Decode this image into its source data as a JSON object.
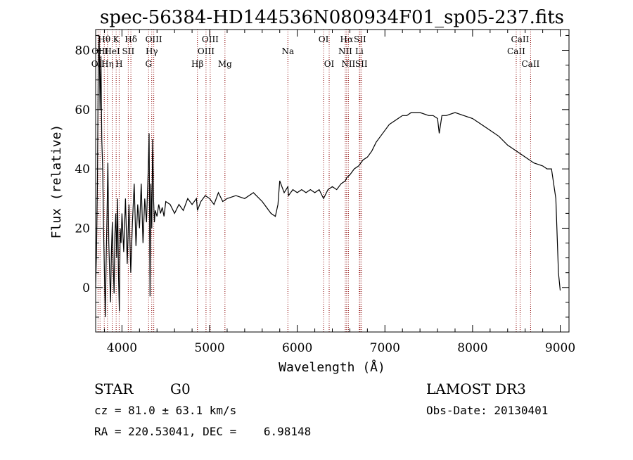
{
  "chart_data": {
    "type": "line",
    "title": "spec-56384-HD144536N080934F01_sp05-237.fits",
    "xlabel": "Wavelength (Å)",
    "ylabel": "Flux (relative)",
    "xlim": [
      3700,
      9100
    ],
    "ylim": [
      -15,
      87
    ],
    "xticks": [
      "4000",
      "5000",
      "6000",
      "7000",
      "8000",
      "9000"
    ],
    "xtick_values": [
      4000,
      5000,
      6000,
      7000,
      8000,
      9000
    ],
    "yticks": [
      "0",
      "20",
      "40",
      "60",
      "80"
    ],
    "ytick_values": [
      0,
      20,
      40,
      60,
      80
    ],
    "line_color": "#000000",
    "marker_color": "#8b0000",
    "series": [
      {
        "x": [
          3700,
          3710,
          3720,
          3730,
          3740,
          3750,
          3760,
          3770,
          3780,
          3790,
          3800,
          3810,
          3820,
          3830,
          3840,
          3850,
          3860,
          3870,
          3880,
          3890,
          3900,
          3910,
          3920,
          3930,
          3940,
          3950,
          3960,
          3970,
          3980,
          3990,
          4000,
          4020,
          4040,
          4060,
          4080,
          4100,
          4120,
          4140,
          4160,
          4180,
          4200,
          4220,
          4240,
          4260,
          4280,
          4300,
          4310,
          4320,
          4330,
          4340,
          4350,
          4360,
          4370,
          4380,
          4400,
          4420,
          4440,
          4460,
          4480,
          4500,
          4550,
          4600,
          4650,
          4700,
          4750,
          4800,
          4850,
          4861,
          4900,
          4950,
          5000,
          5050,
          5100,
          5150,
          5200,
          5300,
          5400,
          5500,
          5600,
          5700,
          5750,
          5780,
          5800,
          5850,
          5893,
          5900,
          5950,
          6000,
          6050,
          6100,
          6150,
          6200,
          6250,
          6300,
          6350,
          6400,
          6450,
          6500,
          6550,
          6563,
          6600,
          6650,
          6700,
          6750,
          6800,
          6850,
          6900,
          6950,
          7000,
          7050,
          7100,
          7150,
          7200,
          7250,
          7300,
          7400,
          7500,
          7550,
          7600,
          7620,
          7650,
          7700,
          7800,
          7900,
          8000,
          8100,
          8200,
          8300,
          8400,
          8500,
          8600,
          8700,
          8800,
          8850,
          8900,
          8950,
          8980,
          9000
        ],
        "y": [
          0,
          12,
          35,
          75,
          85,
          60,
          78,
          50,
          40,
          20,
          5,
          -10,
          10,
          25,
          42,
          15,
          5,
          -5,
          12,
          22,
          8,
          -2,
          18,
          25,
          10,
          30,
          5,
          -8,
          20,
          15,
          25,
          12,
          30,
          8,
          28,
          5,
          22,
          35,
          14,
          28,
          20,
          35,
          15,
          30,
          22,
          40,
          52,
          -3,
          35,
          20,
          50,
          30,
          22,
          26,
          24,
          28,
          25,
          27,
          24,
          29,
          28,
          25,
          28,
          26,
          30,
          28,
          30,
          26,
          29,
          31,
          30,
          28,
          32,
          29,
          30,
          31,
          30,
          32,
          29,
          25,
          24,
          28,
          36,
          32,
          34,
          31,
          33,
          32,
          33,
          32,
          33,
          32,
          33,
          30,
          33,
          34,
          33,
          35,
          36,
          37,
          38,
          40,
          41,
          43,
          44,
          46,
          49,
          51,
          53,
          55,
          56,
          57,
          58,
          58,
          59,
          59,
          58,
          58,
          57,
          52,
          58,
          58,
          59,
          58,
          57,
          55,
          53,
          51,
          48,
          46,
          44,
          42,
          41,
          40,
          40,
          30,
          5,
          -1
        ]
      }
    ],
    "line_markers": [
      {
        "label": "OII",
        "x": 3727,
        "row": 3
      },
      {
        "label": "Hθ",
        "x": 3798,
        "row": 1
      },
      {
        "label": "OIII",
        "x": 3750,
        "row": 2
      },
      {
        "label": "Hη",
        "x": 3835,
        "row": 3
      },
      {
        "label": "HeI",
        "x": 3889,
        "row": 2
      },
      {
        "label": "K",
        "x": 3934,
        "row": 1
      },
      {
        "label": "H",
        "x": 3968,
        "row": 3
      },
      {
        "label": "SII",
        "x": 4072,
        "row": 2
      },
      {
        "label": "Hδ",
        "x": 4102,
        "row": 1
      },
      {
        "label": "G",
        "x": 4304,
        "row": 3
      },
      {
        "label": "Hγ",
        "x": 4340,
        "row": 2
      },
      {
        "label": "OIII",
        "x": 4363,
        "row": 1
      },
      {
        "label": "Hβ",
        "x": 4861,
        "row": 3
      },
      {
        "label": "OIII",
        "x": 4959,
        "row": 2
      },
      {
        "label": "OIII",
        "x": 5007,
        "row": 1
      },
      {
        "label": "Mg",
        "x": 5175,
        "row": 3
      },
      {
        "label": "Na",
        "x": 5893,
        "row": 2
      },
      {
        "label": "OI",
        "x": 6300,
        "row": 1
      },
      {
        "label": "OI",
        "x": 6364,
        "row": 3
      },
      {
        "label": "NII",
        "x": 6548,
        "row": 2
      },
      {
        "label": "Hα",
        "x": 6563,
        "row": 1
      },
      {
        "label": "NII",
        "x": 6583,
        "row": 3
      },
      {
        "label": "Li",
        "x": 6708,
        "row": 2
      },
      {
        "label": "SII",
        "x": 6716,
        "row": 1
      },
      {
        "label": "SII",
        "x": 6731,
        "row": 3
      },
      {
        "label": "CaII",
        "x": 8498,
        "row": 2
      },
      {
        "label": "CaII",
        "x": 8542,
        "row": 1
      },
      {
        "label": "CaII",
        "x": 8662,
        "row": 3
      }
    ]
  },
  "info": {
    "class_label": "STAR",
    "subclass_label": "G0",
    "survey_label": "LAMOST DR3",
    "cz_text": "cz = 81.0 ± 63.1 km/s",
    "obs_date_text": "Obs-Date: 20130401",
    "coords_text": "RA = 220.53041, DEC =    6.98148"
  }
}
